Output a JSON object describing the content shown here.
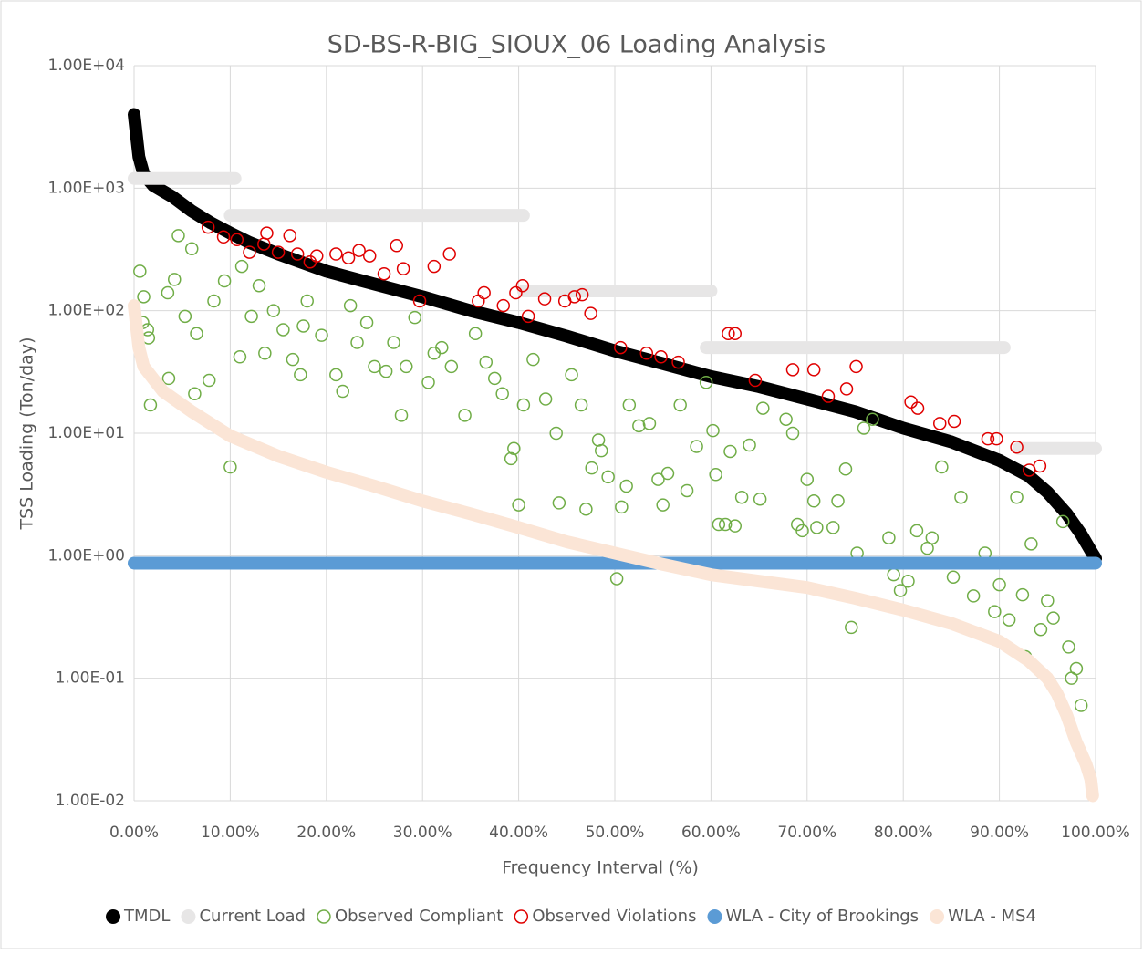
{
  "chart_data": {
    "type": "scatter",
    "title": "SD-BS-R-BIG_SIOUX_06 Loading Analysis",
    "x_label": "Frequency Interval (%)",
    "y_label": "TSS Loading (Ton/day)",
    "log_y": true,
    "grid": true,
    "legend": "bottom",
    "xlim": [
      0,
      100
    ],
    "xticks": [
      {
        "value": 0,
        "label": "0.00%"
      },
      {
        "value": 10,
        "label": "10.00%"
      },
      {
        "value": 20,
        "label": "20.00%"
      },
      {
        "value": 30,
        "label": "30.00%"
      },
      {
        "value": 40,
        "label": "40.00%"
      },
      {
        "value": 50,
        "label": "50.00%"
      },
      {
        "value": 60,
        "label": "60.00%"
      },
      {
        "value": 70,
        "label": "70.00%"
      },
      {
        "value": 80,
        "label": "80.00%"
      },
      {
        "value": 90,
        "label": "90.00%"
      },
      {
        "value": 100,
        "label": "100.00%"
      }
    ],
    "ylim": [
      0.01,
      10000
    ],
    "yticks": [
      {
        "value": 0.01,
        "label": "1.00E-02"
      },
      {
        "value": 0.1,
        "label": "1.00E-01"
      },
      {
        "value": 1,
        "label": "1.00E+00"
      },
      {
        "value": 10,
        "label": "1.00E+01"
      },
      {
        "value": 100,
        "label": "1.00E+02"
      },
      {
        "value": 1000,
        "label": "1.00E+03"
      },
      {
        "value": 10000,
        "label": "1.00E+04"
      }
    ],
    "series": [
      {
        "name": "TMDL",
        "color": "#000000",
        "mode": "line",
        "x": [
          0,
          0.5,
          1,
          2,
          4,
          6,
          8,
          10,
          12,
          15,
          20,
          25,
          30,
          35,
          40,
          45,
          50,
          55,
          60,
          65,
          70,
          75,
          80,
          85,
          90,
          93,
          95,
          97,
          98.5,
          99.5,
          100
        ],
        "values": [
          4000,
          1800,
          1300,
          1050,
          850,
          650,
          520,
          430,
          360,
          290,
          210,
          165,
          130,
          100,
          80,
          62,
          47,
          37,
          29,
          24,
          19,
          15,
          11,
          8.5,
          6,
          4.5,
          3.3,
          2.2,
          1.5,
          1.1,
          0.95
        ]
      },
      {
        "name": "Current Load",
        "color": "#e7e6e6",
        "mode": "line",
        "x": [
          0,
          10.5,
          null,
          10,
          40.5,
          null,
          40.5,
          60,
          null,
          59.5,
          90.5,
          null,
          92,
          100
        ],
        "values": [
          1200,
          1200,
          null,
          600,
          600,
          null,
          145,
          145,
          null,
          50,
          50,
          null,
          7.5,
          7.5
        ]
      },
      {
        "name": "Observed Compliant",
        "color": "#70ad47",
        "mode": "markers",
        "x": [
          0.6,
          1,
          0.9,
          1.4,
          1.7,
          1.5,
          3.6,
          3.5,
          4.2,
          4.6,
          5.3,
          6,
          6.3,
          6.5,
          7.8,
          8.3,
          9.4,
          10,
          11,
          11.2,
          12.2,
          13,
          13.6,
          14.5,
          15.5,
          16.5,
          17.3,
          17.6,
          18,
          19.5,
          21,
          21.7,
          22.5,
          23.2,
          24.2,
          25,
          26.2,
          27,
          27.8,
          28.3,
          29.2,
          30.6,
          31.2,
          32,
          33,
          34.4,
          35.5,
          36.6,
          37.5,
          38.3,
          39.2,
          39.5,
          40,
          40.5,
          41.5,
          42.8,
          43.9,
          44.2,
          45.5,
          46.5,
          47,
          47.6,
          48.3,
          48.6,
          49.3,
          50.2,
          50.7,
          51.2,
          51.5,
          52.5,
          53.6,
          54.5,
          55,
          55.5,
          56.8,
          57.5,
          58.5,
          59.5,
          60.2,
          60.5,
          60.8,
          61.5,
          62,
          62.5,
          63.2,
          64,
          65.1,
          65.4,
          67.8,
          68.5,
          69,
          69.5,
          70,
          70.7,
          71,
          72.7,
          73.2,
          74,
          74.6,
          75.2,
          75.9,
          76.8,
          78.5,
          79,
          79.7,
          80.5,
          81.4,
          82.5,
          83,
          84,
          85.2,
          86,
          87.3,
          88.5,
          89.5,
          90,
          91,
          91.8,
          92.4,
          92.7,
          93.3,
          94.3,
          95,
          95.6,
          97.2,
          97.5,
          98.5,
          96.6,
          98
        ],
        "values": [
          210,
          130,
          80,
          70,
          17,
          60,
          28,
          140,
          180,
          410,
          90,
          320,
          21,
          65,
          27,
          120,
          175,
          5.3,
          42,
          230,
          90,
          160,
          45,
          100,
          70,
          40,
          30,
          75,
          120,
          63,
          30,
          22,
          110,
          55,
          80,
          35,
          32,
          55,
          14,
          35,
          88,
          26,
          45,
          50,
          35,
          14,
          65,
          38,
          28,
          21,
          6.2,
          7.5,
          2.6,
          17,
          40,
          19,
          10,
          2.7,
          30,
          17,
          2.4,
          5.2,
          8.8,
          7.2,
          4.4,
          0.65,
          2.5,
          3.7,
          17,
          11.5,
          12,
          4.2,
          2.6,
          4.7,
          17,
          3.4,
          7.8,
          26,
          10.5,
          4.6,
          1.8,
          1.8,
          7.1,
          1.75,
          3,
          8,
          2.9,
          16,
          13,
          10,
          1.8,
          1.6,
          4.2,
          2.8,
          1.7,
          1.7,
          2.8,
          5.1,
          0.26,
          1.05,
          11,
          13,
          1.4,
          0.7,
          0.52,
          0.62,
          1.6,
          1.15,
          1.4,
          5.3,
          0.67,
          3,
          0.47,
          1.05,
          0.35,
          0.58,
          0.3,
          3,
          0.48,
          0.15,
          1.25,
          0.25,
          0.43,
          0.31,
          0.18,
          0.1,
          0.06,
          1.9,
          0.12
        ]
      },
      {
        "name": "Observed Violations",
        "color": "#e00000",
        "mode": "markers",
        "x": [
          7.7,
          9.3,
          10.7,
          12,
          13.5,
          13.8,
          15,
          16.2,
          17,
          18.3,
          19,
          21,
          22.3,
          23.4,
          24.5,
          26,
          27.3,
          28,
          29.7,
          31.2,
          32.8,
          35.8,
          36.4,
          38.4,
          39.7,
          40.4,
          41,
          42.7,
          44.8,
          45.8,
          46.6,
          47.5,
          50.6,
          53.3,
          54.8,
          56.6,
          61.8,
          62.5,
          64.6,
          68.5,
          70.7,
          72.2,
          74.1,
          75.1,
          80.8,
          81.5,
          83.8,
          85.3,
          88.8,
          89.7,
          91.8,
          94.2,
          93.1
        ],
        "values": [
          480,
          400,
          380,
          300,
          350,
          430,
          300,
          410,
          290,
          250,
          280,
          290,
          270,
          310,
          280,
          200,
          340,
          220,
          120,
          230,
          290,
          120,
          140,
          110,
          140,
          160,
          90,
          125,
          120,
          130,
          135,
          95,
          50,
          45,
          42,
          38,
          65,
          65,
          27,
          33,
          33,
          20,
          23,
          35,
          18,
          16,
          12,
          12.5,
          9,
          9,
          7.7,
          5.4,
          5
        ]
      },
      {
        "name": "WLA - City of Brookings",
        "color": "#5b9bd5",
        "mode": "line",
        "x": [
          0,
          100
        ],
        "values": [
          0.87,
          0.87
        ]
      },
      {
        "name": "WLA - MS4",
        "color": "#fbe5d6",
        "mode": "line",
        "x": [
          0,
          0.5,
          1,
          3,
          6,
          10,
          15,
          20,
          25,
          30,
          35,
          40,
          45,
          50,
          55,
          60,
          65,
          70,
          75,
          80,
          85,
          90,
          93,
          95,
          96,
          97,
          98,
          99,
          99.5,
          99.7
        ],
        "values": [
          110,
          50,
          35,
          22,
          15,
          9.5,
          6.5,
          4.8,
          3.7,
          2.8,
          2.2,
          1.7,
          1.3,
          1.05,
          0.85,
          0.7,
          0.62,
          0.55,
          0.45,
          0.36,
          0.28,
          0.2,
          0.14,
          0.1,
          0.075,
          0.05,
          0.03,
          0.02,
          0.015,
          0.011
        ]
      }
    ]
  }
}
